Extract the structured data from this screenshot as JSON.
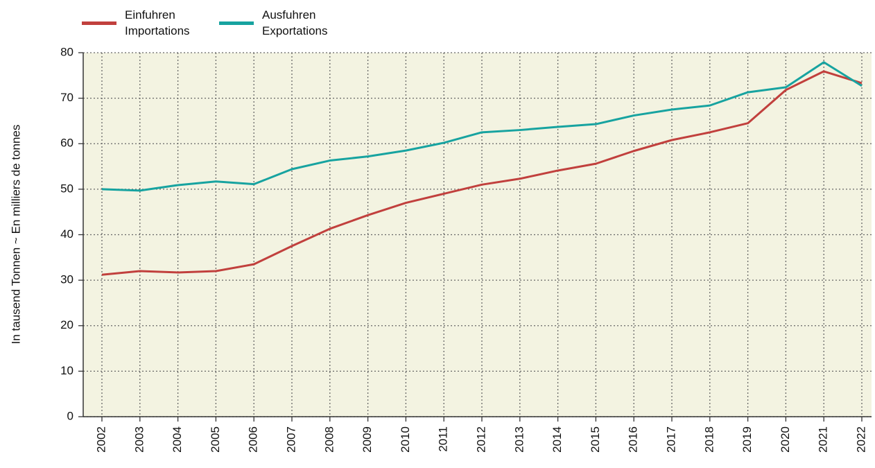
{
  "chart_data": {
    "type": "line",
    "y_label": "In tausend Tonnen   ~   En milliers de tonnes",
    "categories": [
      "2002",
      "2003",
      "2004",
      "2005",
      "2006",
      "2007",
      "2008",
      "2009",
      "2010",
      "2011",
      "2012",
      "2013",
      "2014",
      "2015",
      "2016",
      "2017",
      "2018",
      "2019",
      "2020",
      "2021",
      "2022"
    ],
    "series": [
      {
        "name": "Einfuhren\nImportations",
        "color": "#c1403d",
        "values": [
          31.2,
          32.0,
          31.7,
          32.0,
          33.5,
          37.5,
          41.3,
          44.3,
          47.0,
          49.0,
          51.0,
          52.3,
          54.1,
          55.6,
          58.4,
          60.8,
          62.5,
          64.5,
          71.8,
          75.9,
          73.3
        ]
      },
      {
        "name": "Ausfuhren\nExportations",
        "color": "#17a3a0",
        "values": [
          50.0,
          49.7,
          50.9,
          51.7,
          51.1,
          54.4,
          56.3,
          57.2,
          58.5,
          60.2,
          62.5,
          63.0,
          63.7,
          64.3,
          66.2,
          67.5,
          68.4,
          71.3,
          72.4,
          77.9,
          72.7
        ]
      }
    ],
    "ylim": [
      0,
      80
    ],
    "yticks": [
      0,
      10,
      20,
      30,
      40,
      50,
      60,
      70,
      80
    ],
    "grid": true
  }
}
